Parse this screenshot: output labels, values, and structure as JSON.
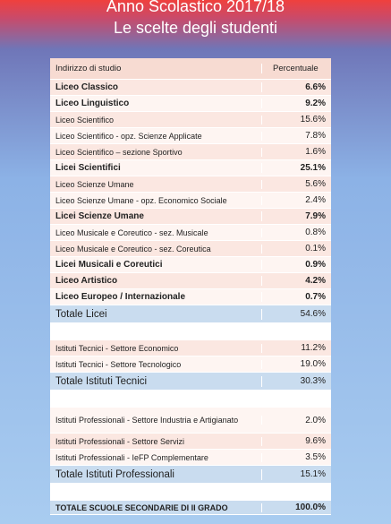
{
  "header": {
    "title_line1": "Anno Scolastico 2017/18",
    "title_line2": "Le scelte degli studenti"
  },
  "table": {
    "col_indirizzo": "Indirizzo di studio",
    "col_percentuale": "Percentuale",
    "rows": [
      {
        "label": "Liceo Classico",
        "value": "6.6%"
      },
      {
        "label": "Liceo Linguistico",
        "value": "9.2%"
      },
      {
        "label": "Liceo Scientifico",
        "value": "15.6%"
      },
      {
        "label": "Liceo Scientifico - opz. Scienze Applicate",
        "value": "7.8%"
      },
      {
        "label": "Liceo Scientifico – sezione Sportivo",
        "value": "1.6%"
      },
      {
        "label": "Licei Scientifici",
        "value": "25.1%"
      },
      {
        "label": "Liceo Scienze Umane",
        "value": "5.6%"
      },
      {
        "label": "Liceo Scienze Umane - opz. Economico Sociale",
        "value": "2.4%"
      },
      {
        "label": "Licei Scienze Umane",
        "value": "7.9%"
      },
      {
        "label": "Liceo Musicale e Coreutico - sez. Musicale",
        "value": "0.8%"
      },
      {
        "label": "Liceo Musicale e Coreutico - sez. Coreutica",
        "value": "0.1%"
      },
      {
        "label": "Licei Musicali e Coreutici",
        "value": "0.9%"
      },
      {
        "label": "Liceo Artistico",
        "value": "4.2%"
      },
      {
        "label": "Liceo Europeo / Internazionale",
        "value": "0.7%"
      }
    ],
    "totale_licei": {
      "label": "Totale Licei",
      "value": "54.6%"
    },
    "tecnici": [
      {
        "label": "Istituti Tecnici - Settore Economico",
        "value": "11.2%"
      },
      {
        "label": "Istituti Tecnici - Settore Tecnologico",
        "value": "19.0%"
      }
    ],
    "totale_tecnici": {
      "label": "Totale Istituti Tecnici",
      "value": "30.3%"
    },
    "professionali": [
      {
        "label": "Istituti Professionali - Settore Industria e Artigianato",
        "value": "2.0%"
      },
      {
        "label": "Istituti Professionali - Settore Servizi",
        "value": "9.6%"
      },
      {
        "label": "Istituti Professionali - IeFP Complementare",
        "value": "3.5%"
      }
    ],
    "totale_professionali": {
      "label": "Totale Istituti Professionali",
      "value": "15.1%"
    },
    "totale_generale": {
      "label": "TOTALE SCUOLE SECONDARIE DI II GRADO",
      "value": "100.0%"
    }
  }
}
